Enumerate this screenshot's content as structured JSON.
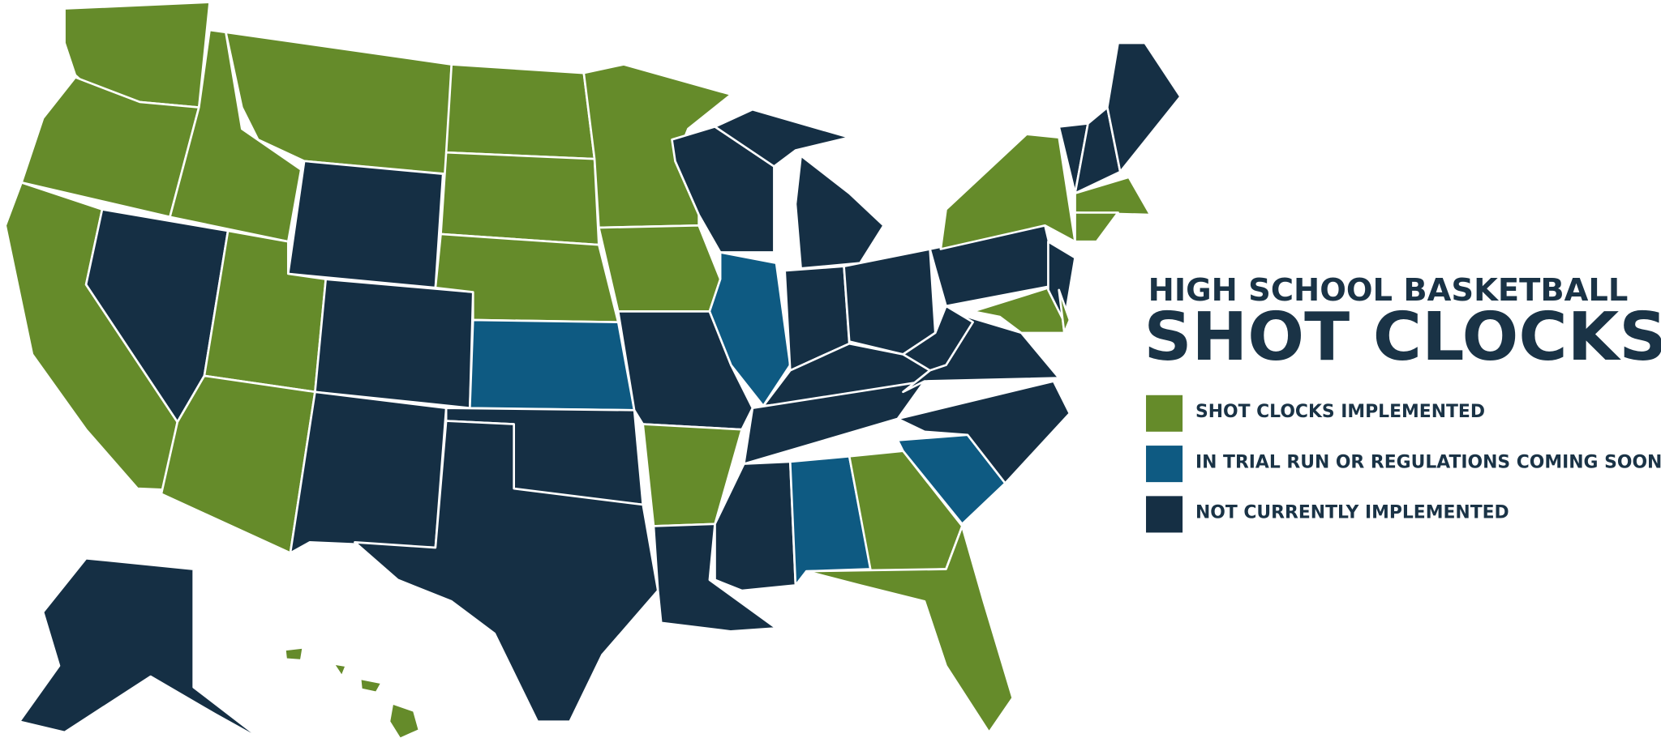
{
  "title": {
    "line1": "HIGH SCHOOL BASKETBALL",
    "line2": "SHOT CLOCKS"
  },
  "legend": [
    {
      "label": "SHOT CLOCKS IMPLEMENTED",
      "color": "#658b2a"
    },
    {
      "label": "IN TRIAL RUN OR REGULATIONS COMING SOON",
      "color": "#0e5a82"
    },
    {
      "label": "NOT CURRENTLY IMPLEMENTED",
      "color": "#152f44"
    }
  ]
}
